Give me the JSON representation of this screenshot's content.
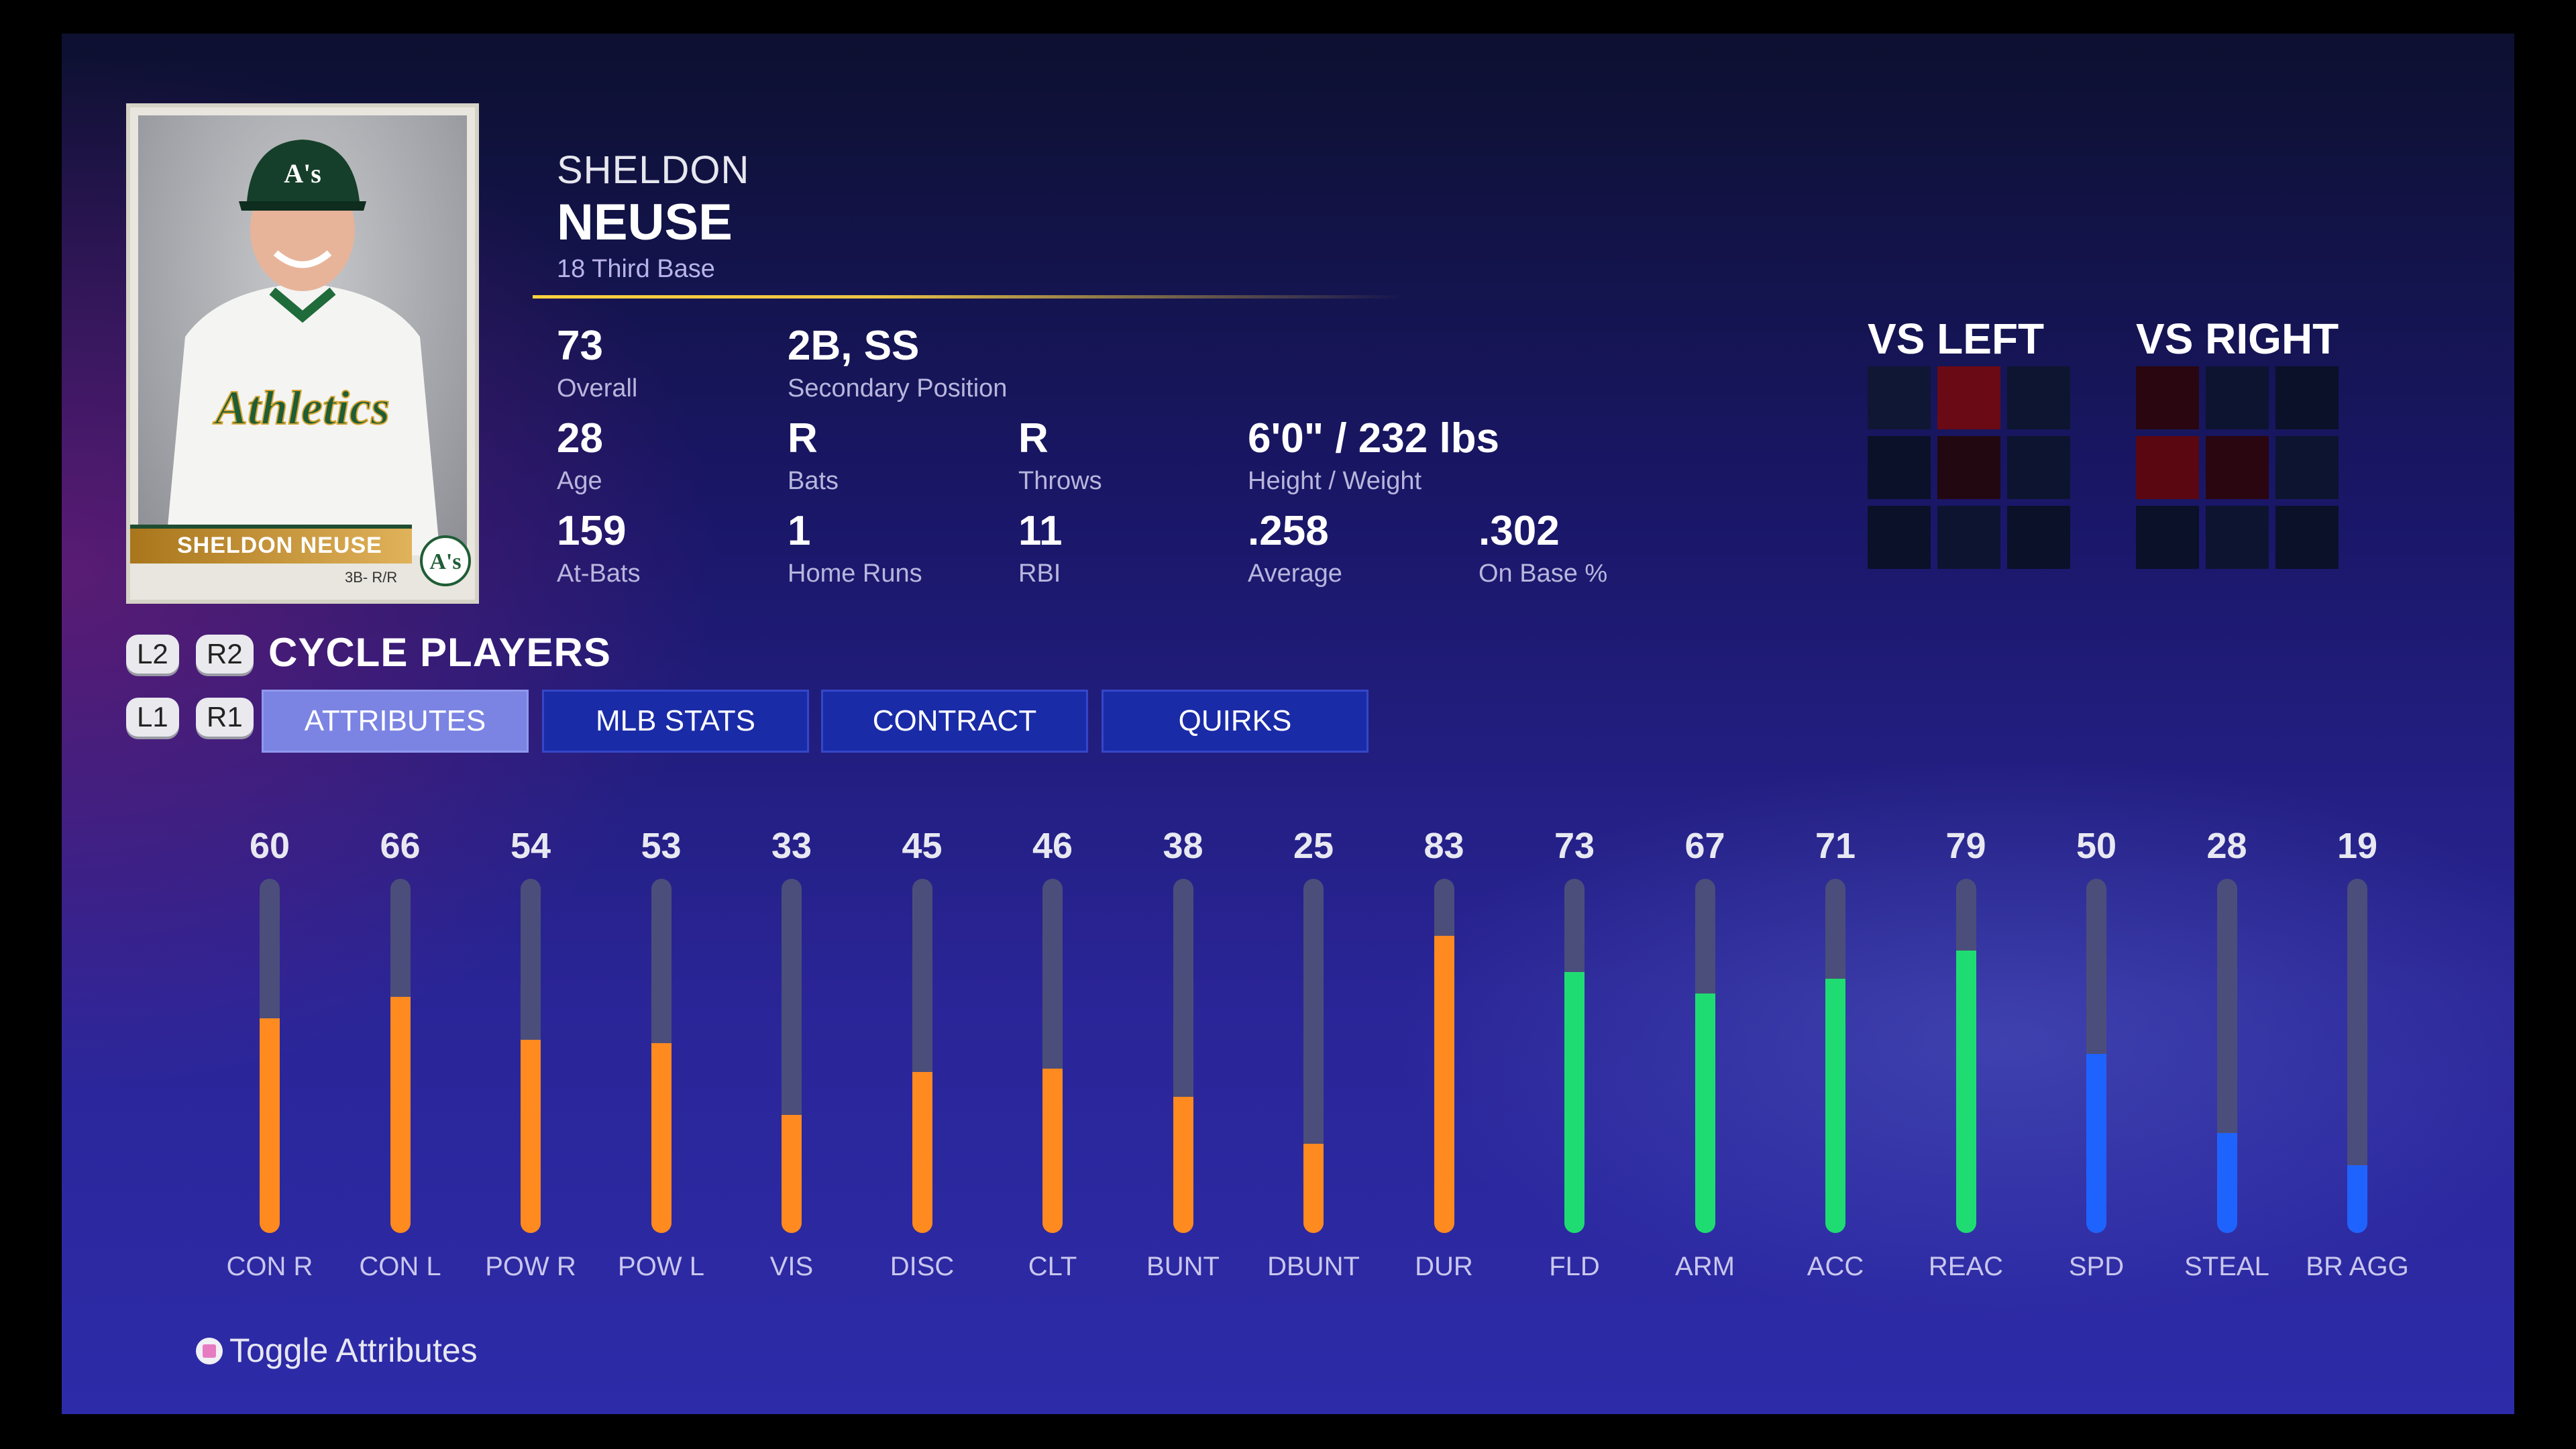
{
  "player": {
    "first_name": "SHELDON",
    "last_name": "NEUSE",
    "number_position": "18  Third Base",
    "card_name": "SHELDON NEUSE",
    "card_position": "3B- R/R",
    "card_logo_text": "A's",
    "jersey_text": "Athletics"
  },
  "stats": {
    "overall": {
      "value": "73",
      "label": "Overall"
    },
    "secondary_position": {
      "value": "2B, SS",
      "label": "Secondary Position"
    },
    "age": {
      "value": "28",
      "label": "Age"
    },
    "bats": {
      "value": "R",
      "label": "Bats"
    },
    "throws": {
      "value": "R",
      "label": "Throws"
    },
    "height_weight": {
      "value": "6'0\" / 232 lbs",
      "label": "Height / Weight"
    },
    "at_bats": {
      "value": "159",
      "label": "At-Bats"
    },
    "home_runs": {
      "value": "1",
      "label": "Home Runs"
    },
    "rbi": {
      "value": "11",
      "label": "RBI"
    },
    "average": {
      "value": ".258",
      "label": "Average"
    },
    "on_base": {
      "value": ".302",
      "label": "On Base %"
    }
  },
  "splits": {
    "vs_left": {
      "title": "VS LEFT",
      "cells": [
        "#0f1735",
        "#6a0a14",
        "#0d1530",
        "#0a1128",
        "#220811",
        "#0c1430",
        "#0a1128",
        "#0c1430",
        "#0a1128"
      ]
    },
    "vs_right": {
      "title": "VS RIGHT",
      "cells": [
        "#2a0610",
        "#0c1430",
        "#0a1128",
        "#5a0712",
        "#2a0610",
        "#0c1430",
        "#0a1128",
        "#0c1430",
        "#0a1128"
      ]
    }
  },
  "controls": {
    "l2": "L2",
    "r2": "R2",
    "l1": "L1",
    "r1": "R1",
    "cycle_label": "CYCLE PLAYERS",
    "toggle_label": "Toggle Attributes"
  },
  "tabs": [
    {
      "label": "ATTRIBUTES",
      "active": true
    },
    {
      "label": "MLB STATS",
      "active": false
    },
    {
      "label": "CONTRACT",
      "active": false
    },
    {
      "label": "QUIRKS",
      "active": false
    }
  ],
  "colors": {
    "hitting": "#ff8a1f",
    "fielding": "#1fdc72",
    "running": "#1f63ff",
    "track": "#4b4e7a"
  },
  "chart_data": {
    "type": "bar",
    "categories": [
      "CON R",
      "CON L",
      "POW R",
      "POW L",
      "VIS",
      "DISC",
      "CLT",
      "BUNT",
      "DBUNT",
      "DUR",
      "FLD",
      "ARM",
      "ACC",
      "REAC",
      "SPD",
      "STEAL",
      "BR AGG"
    ],
    "values": [
      60,
      66,
      54,
      53,
      33,
      45,
      46,
      38,
      25,
      83,
      73,
      67,
      71,
      79,
      50,
      28,
      19
    ],
    "groups": [
      "hitting",
      "hitting",
      "hitting",
      "hitting",
      "hitting",
      "hitting",
      "hitting",
      "hitting",
      "hitting",
      "hitting",
      "fielding",
      "fielding",
      "fielding",
      "fielding",
      "running",
      "running",
      "running"
    ],
    "ylim": [
      0,
      99
    ]
  }
}
